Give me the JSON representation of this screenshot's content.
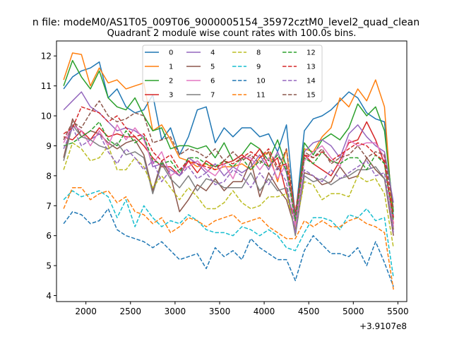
{
  "chart_data": {
    "type": "line",
    "suptitle": "n file: modeM0/AS1T05_009T06_9000005154_35972cztM0_level2_quad_clean",
    "title": "Quadrant 2 module wise count rates with 100.0s bins.",
    "xlabel": "",
    "ylabel": "",
    "x_offset_label": "+3.9107e8",
    "xlim": [
      1670,
      5600
    ],
    "ylim": [
      3.8,
      12.5
    ],
    "xticks": [
      2000,
      2500,
      3000,
      3500,
      4000,
      4500,
      5000,
      5500
    ],
    "yticks": [
      4,
      5,
      6,
      7,
      8,
      9,
      10,
      11,
      12
    ],
    "legend_position": "upper-center",
    "x": [
      1750,
      1850,
      1950,
      2050,
      2150,
      2250,
      2350,
      2450,
      2550,
      2650,
      2750,
      2850,
      2950,
      3050,
      3150,
      3250,
      3350,
      3450,
      3550,
      3650,
      3750,
      3850,
      3950,
      4050,
      4150,
      4250,
      4350,
      4450,
      4550,
      4650,
      4750,
      4850,
      4950,
      5050,
      5150,
      5250,
      5350,
      5450
    ],
    "series": [
      {
        "name": "0",
        "color": "#1f77b4",
        "dash": false,
        "values": [
          10.9,
          11.3,
          11.5,
          11.6,
          11.8,
          10.6,
          10.9,
          10.3,
          10.1,
          10.2,
          10.7,
          9.2,
          9.6,
          8.7,
          9.3,
          10.2,
          10.3,
          9.1,
          9.6,
          9.3,
          9.6,
          9.6,
          9.3,
          9.4,
          8.8,
          9.7,
          6.6,
          9.5,
          9.9,
          10.0,
          10.2,
          10.5,
          10.8,
          10.6,
          10.1,
          9.9,
          9.8,
          6.6
        ]
      },
      {
        "name": "1",
        "color": "#ff7f0e",
        "dash": false,
        "values": [
          11.2,
          12.1,
          12.05,
          11.0,
          11.6,
          11.1,
          11.2,
          10.9,
          11.0,
          11.1,
          9.5,
          9.7,
          9.2,
          8.6,
          8.5,
          8.3,
          8.4,
          8.2,
          8.3,
          8.3,
          8.4,
          8.2,
          8.6,
          8.8,
          7.8,
          8.9,
          6.4,
          8.9,
          8.8,
          9.3,
          9.6,
          10.6,
          10.3,
          10.9,
          10.5,
          11.2,
          10.3,
          6.2
        ]
      },
      {
        "name": "2",
        "color": "#2ca02c",
        "dash": false,
        "values": [
          11.0,
          11.85,
          11.3,
          10.9,
          11.5,
          10.6,
          10.3,
          10.2,
          10.6,
          10.0,
          9.5,
          9.6,
          8.9,
          9.0,
          9.0,
          8.9,
          9.0,
          8.6,
          9.1,
          8.5,
          8.7,
          9.1,
          8.9,
          8.5,
          9.2,
          8.3,
          6.5,
          9.1,
          8.7,
          9.2,
          9.4,
          9.2,
          9.6,
          10.4,
          10.0,
          10.3,
          9.5,
          6.8
        ]
      },
      {
        "name": "3",
        "color": "#d62728",
        "dash": false,
        "values": [
          9.3,
          9.2,
          9.5,
          9.2,
          9.6,
          9.3,
          9.4,
          9.3,
          9.3,
          9.0,
          8.6,
          8.3,
          8.3,
          8.0,
          8.5,
          8.1,
          8.5,
          8.3,
          8.4,
          8.5,
          8.7,
          8.5,
          8.9,
          8.3,
          8.6,
          7.4,
          6.5,
          8.7,
          8.4,
          8.2,
          8.0,
          8.5,
          9.1,
          9.2,
          9.8,
          9.2,
          8.4,
          6.4
        ]
      },
      {
        "name": "4",
        "color": "#9467bd",
        "dash": false,
        "values": [
          10.2,
          10.5,
          10.8,
          10.3,
          10.1,
          9.8,
          9.5,
          9.6,
          9.5,
          9.3,
          8.3,
          8.4,
          8.2,
          8.0,
          8.6,
          8.4,
          8.1,
          8.4,
          8.0,
          8.3,
          8.1,
          8.3,
          8.7,
          8.2,
          8.8,
          8.1,
          6.6,
          8.8,
          9.1,
          9.2,
          9.0,
          8.6,
          9.4,
          9.7,
          9.3,
          9.0,
          8.8,
          7.1
        ]
      },
      {
        "name": "5",
        "color": "#8c564b",
        "dash": false,
        "values": [
          8.6,
          9.9,
          9.3,
          9.5,
          9.4,
          9.1,
          8.9,
          9.1,
          9.2,
          8.7,
          7.5,
          8.5,
          8.0,
          6.8,
          7.2,
          7.7,
          7.5,
          7.9,
          7.5,
          7.8,
          7.8,
          8.5,
          7.3,
          8.1,
          7.6,
          7.2,
          6.2,
          8.1,
          8.0,
          7.7,
          7.8,
          8.3,
          7.9,
          8.0,
          8.6,
          8.2,
          7.9,
          6.0
        ]
      },
      {
        "name": "6",
        "color": "#e377c2",
        "dash": false,
        "values": [
          9.1,
          9.7,
          9.5,
          9.0,
          9.5,
          9.0,
          9.7,
          9.2,
          9.6,
          9.2,
          8.4,
          8.8,
          8.0,
          8.2,
          8.3,
          8.5,
          8.2,
          8.0,
          8.4,
          7.9,
          8.6,
          8.6,
          8.2,
          8.6,
          7.9,
          8.4,
          6.3,
          8.5,
          8.8,
          9.0,
          8.6,
          8.3,
          9.2,
          9.0,
          9.1,
          9.1,
          8.6,
          6.3
        ]
      },
      {
        "name": "7",
        "color": "#7f7f7f",
        "dash": false,
        "values": [
          8.5,
          9.7,
          9.3,
          9.2,
          9.0,
          8.9,
          9.1,
          8.7,
          8.8,
          8.6,
          7.4,
          8.4,
          7.9,
          7.6,
          8.0,
          7.5,
          7.9,
          7.8,
          7.6,
          7.6,
          7.6,
          8.1,
          7.5,
          7.9,
          7.5,
          7.6,
          6.0,
          8.0,
          7.8,
          7.9,
          7.7,
          7.9,
          8.0,
          8.2,
          8.2,
          8.3,
          7.9,
          6.2
        ]
      },
      {
        "name": "8",
        "color": "#bcbd22",
        "dash": true,
        "values": [
          8.2,
          9.1,
          8.9,
          8.5,
          8.6,
          9.0,
          8.2,
          8.2,
          8.6,
          8.3,
          7.6,
          8.0,
          7.6,
          7.2,
          7.6,
          7.3,
          6.9,
          6.9,
          7.1,
          7.5,
          7.1,
          6.9,
          7.0,
          7.3,
          7.3,
          7.4,
          6.2,
          7.8,
          7.7,
          7.2,
          7.4,
          7.4,
          7.3,
          8.0,
          7.8,
          7.9,
          7.4,
          5.6
        ]
      },
      {
        "name": "9",
        "color": "#17becf",
        "dash": true,
        "values": [
          7.2,
          7.5,
          7.3,
          7.4,
          7.5,
          7.3,
          6.6,
          7.2,
          6.3,
          7.0,
          6.6,
          6.3,
          6.5,
          6.4,
          6.7,
          6.5,
          6.2,
          6.1,
          6.1,
          6.0,
          6.3,
          6.2,
          6.0,
          6.2,
          6.0,
          5.6,
          5.5,
          6.1,
          6.6,
          6.6,
          6.5,
          6.2,
          6.7,
          6.6,
          6.9,
          6.5,
          6.6,
          4.6
        ]
      },
      {
        "name": "10",
        "color": "#1f77b4",
        "dash": true,
        "values": [
          6.4,
          6.8,
          6.7,
          6.4,
          6.5,
          6.9,
          6.2,
          6.0,
          5.9,
          5.8,
          5.6,
          5.8,
          5.5,
          5.2,
          5.3,
          5.4,
          4.9,
          5.6,
          5.3,
          5.5,
          5.2,
          5.9,
          5.6,
          5.4,
          5.2,
          5.2,
          4.5,
          5.5,
          6.0,
          5.7,
          5.4,
          5.4,
          5.3,
          5.6,
          5.0,
          5.8,
          5.1,
          4.3
        ]
      },
      {
        "name": "11",
        "color": "#ff7f0e",
        "dash": true,
        "values": [
          6.9,
          7.6,
          7.6,
          7.2,
          7.4,
          7.5,
          7.1,
          7.3,
          6.8,
          6.7,
          6.4,
          6.6,
          6.1,
          6.3,
          6.6,
          6.5,
          6.3,
          6.5,
          6.6,
          6.7,
          6.4,
          6.5,
          6.6,
          6.3,
          6.1,
          5.9,
          5.9,
          6.5,
          6.3,
          6.5,
          6.3,
          6.3,
          6.5,
          6.6,
          6.4,
          6.3,
          6.1,
          4.2
        ]
      },
      {
        "name": "12",
        "color": "#2ca02c",
        "dash": true,
        "values": [
          9.0,
          9.1,
          9.3,
          9.5,
          9.8,
          9.2,
          9.0,
          9.5,
          9.1,
          9.3,
          8.5,
          8.4,
          8.5,
          8.1,
          8.6,
          8.6,
          8.4,
          8.3,
          8.5,
          8.3,
          8.6,
          8.2,
          8.5,
          8.3,
          8.7,
          8.2,
          6.5,
          8.6,
          8.4,
          8.8,
          8.5,
          8.4,
          8.6,
          8.6,
          8.2,
          8.7,
          8.4,
          6.5
        ]
      },
      {
        "name": "13",
        "color": "#d62728",
        "dash": true,
        "values": [
          9.4,
          9.6,
          10.3,
          10.2,
          10.1,
          9.8,
          10.0,
          9.6,
          9.3,
          9.4,
          8.8,
          8.5,
          8.7,
          8.2,
          8.5,
          8.4,
          8.3,
          8.2,
          8.5,
          8.4,
          8.6,
          8.8,
          8.6,
          8.9,
          8.3,
          8.4,
          6.8,
          8.7,
          8.6,
          8.8,
          8.5,
          8.7,
          8.9,
          9.1,
          9.0,
          8.7,
          8.5,
          6.6
        ]
      },
      {
        "name": "14",
        "color": "#9467bd",
        "dash": true,
        "values": [
          8.9,
          9.6,
          9.0,
          9.2,
          9.4,
          8.8,
          8.4,
          8.9,
          8.6,
          8.2,
          8.5,
          7.8,
          8.2,
          8.0,
          8.3,
          7.9,
          8.1,
          7.7,
          7.8,
          8.2,
          8.0,
          7.6,
          8.1,
          7.7,
          8.3,
          7.8,
          6.1,
          8.2,
          8.0,
          7.8,
          8.2,
          7.9,
          8.1,
          8.3,
          8.5,
          8.0,
          8.1,
          6.1
        ]
      },
      {
        "name": "15",
        "color": "#8c564b",
        "dash": true,
        "values": [
          9.2,
          9.8,
          9.6,
          10.1,
          10.5,
          10.0,
          9.8,
          9.9,
          10.1,
          10.0,
          9.1,
          9.2,
          9.3,
          8.7,
          8.9,
          8.8,
          8.6,
          8.9,
          8.5,
          8.8,
          8.5,
          8.7,
          8.4,
          8.8,
          8.2,
          8.9,
          6.7,
          8.8,
          8.6,
          8.9,
          8.4,
          8.6,
          8.7,
          9.0,
          8.6,
          8.8,
          8.7,
          6.9
        ]
      }
    ]
  }
}
